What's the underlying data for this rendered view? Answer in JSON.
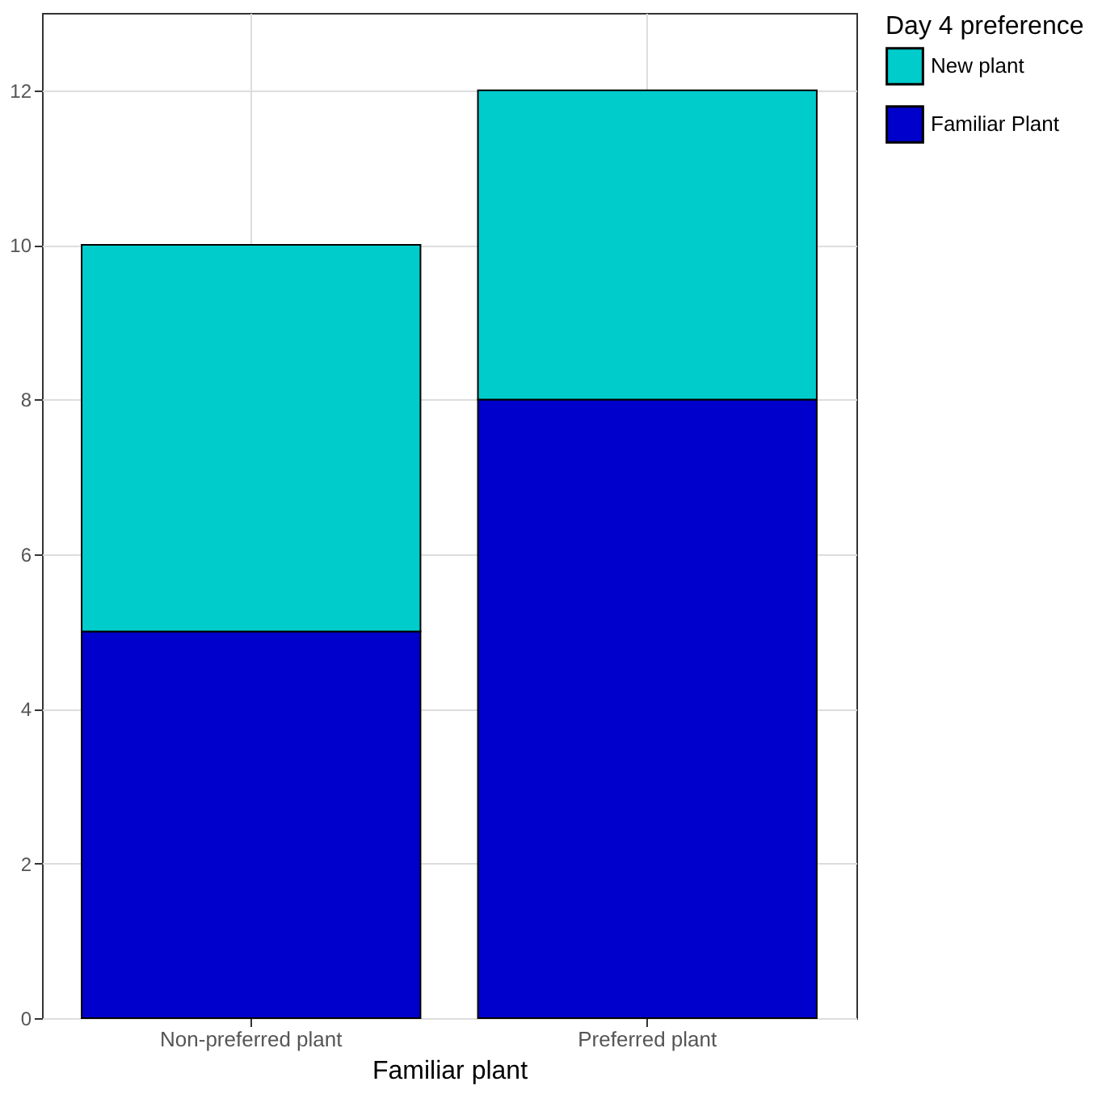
{
  "chart_data": {
    "type": "bar",
    "xlabel": "Familiar plant",
    "legend_title": "Day 4 preference",
    "categories": [
      "Non-preferred plant",
      "Preferred plant"
    ],
    "series": [
      {
        "name": "Familiar Plant",
        "color": "#0000cc",
        "values": [
          5,
          8
        ]
      },
      {
        "name": "New plant",
        "color": "#00cccc",
        "values": [
          5,
          4
        ]
      }
    ],
    "stacked": true,
    "ylim": [
      0,
      13
    ],
    "yticks": [
      0,
      2,
      4,
      6,
      8,
      10,
      12
    ],
    "grid": true,
    "legend": "right"
  }
}
